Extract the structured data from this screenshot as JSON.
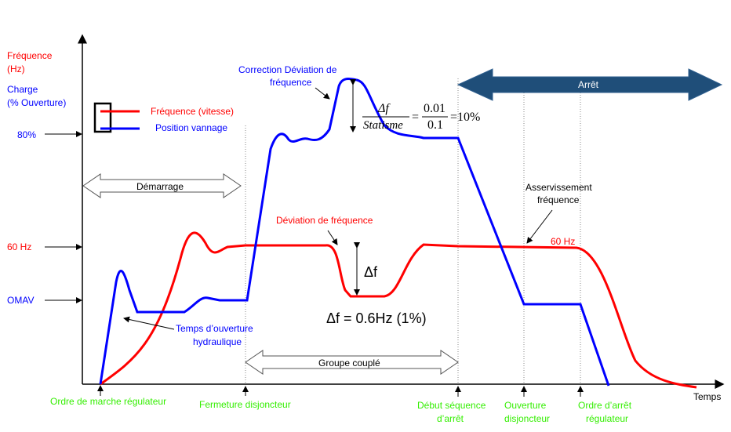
{
  "axis": {
    "y_label_freq": [
      "Fréquence",
      "(Hz)"
    ],
    "y_label_charge": [
      "Charge",
      "(% Ouverture)"
    ],
    "x_label": "Temps",
    "y_ticks": {
      "pct80": "80%",
      "hz60": "60 Hz",
      "omav": "OMAV"
    }
  },
  "legend": {
    "frequency": "Fréquence  (vitesse)",
    "position": "Position  vannage"
  },
  "colors": {
    "frequency": "#ff0000",
    "position": "#0000ff",
    "events": "#33ee00",
    "arret": "#1f4e79"
  },
  "phases": {
    "demarrage": "Démarrage",
    "groupe_couple": "Groupe couplé",
    "arret": "Arrêt"
  },
  "annotations": {
    "correction": [
      "Correction  Déviation de",
      "fréquence"
    ],
    "deviation": "Déviation de fréquence",
    "delta_f": "Δf",
    "delta_f_value": "Δf = 0.6Hz  (1%)",
    "temps_ouverture": [
      "Temps d’ouverture",
      "hydraulique"
    ],
    "asservissement": [
      "Asservissement",
      "fréquence"
    ],
    "hz60_curve": "60 Hz",
    "formula": {
      "num": "Δf",
      "den": "Statisme",
      "eq": "=",
      "num2": "0.01",
      "den2": "0.1",
      "result": "=10%"
    }
  },
  "events": [
    {
      "label": [
        "Ordre de marche régulateur"
      ]
    },
    {
      "label": [
        "Fermeture disjoncteur"
      ]
    },
    {
      "label": [
        "Début séquence",
        "d’arrêt"
      ]
    },
    {
      "label": [
        "Ouverture",
        "disjoncteur"
      ]
    },
    {
      "label": [
        "Ordre d’arrêt",
        "régulateur"
      ]
    }
  ]
}
